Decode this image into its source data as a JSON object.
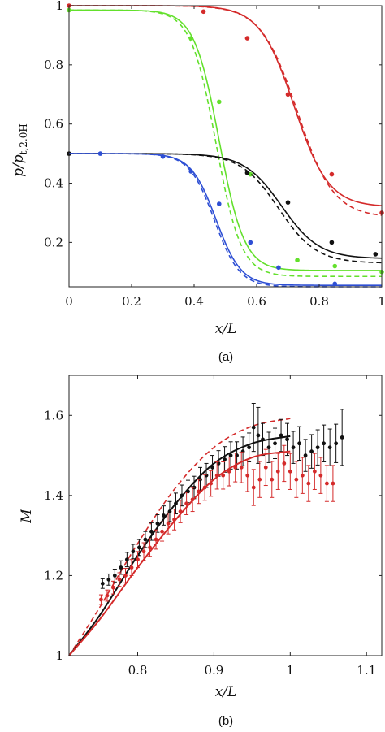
{
  "chart_data": [
    {
      "type": "line",
      "caption": "(a)",
      "xlabel": "x/L",
      "ylabel": "p/p",
      "ylabel_sub": "t,2.0H",
      "xlim": [
        0,
        1
      ],
      "ylim": [
        0.05,
        1.0
      ],
      "xticks": [
        "0",
        "0.2",
        "0.4",
        "0.6",
        "0.8",
        "1"
      ],
      "yticks": [
        "0.2",
        "0.4",
        "0.6",
        "0.8",
        "1"
      ],
      "series": [
        {
          "color": "#d42a2a",
          "curve": {
            "start": 1.0,
            "end": 0.32,
            "mid": 0.72,
            "width": 0.055
          },
          "dashed_curve": {
            "start": 1.0,
            "end": 0.285,
            "mid": 0.73,
            "width": 0.058
          },
          "points": [
            [
              0.0,
              1.0
            ],
            [
              0.43,
              0.98
            ],
            [
              0.57,
              0.89
            ],
            [
              0.7,
              0.7
            ],
            [
              0.84,
              0.43
            ],
            [
              1.0,
              0.3
            ]
          ]
        },
        {
          "color": "#63e02c",
          "curve": {
            "start": 0.985,
            "end": 0.105,
            "mid": 0.48,
            "width": 0.04
          },
          "dashed_curve": {
            "start": 0.985,
            "end": 0.085,
            "mid": 0.47,
            "width": 0.04
          },
          "points": [
            [
              0.0,
              0.985
            ],
            [
              0.39,
              0.89
            ],
            [
              0.48,
              0.675
            ],
            [
              0.58,
              0.43
            ],
            [
              0.73,
              0.14
            ],
            [
              0.85,
              0.12
            ],
            [
              1.0,
              0.1
            ]
          ]
        },
        {
          "color": "#111111",
          "curve": {
            "start": 0.5,
            "end": 0.145,
            "mid": 0.68,
            "width": 0.06
          },
          "dashed_curve": {
            "start": 0.5,
            "end": 0.13,
            "mid": 0.67,
            "width": 0.06
          },
          "points": [
            [
              0.0,
              0.5
            ],
            [
              0.57,
              0.435
            ],
            [
              0.7,
              0.335
            ],
            [
              0.84,
              0.2
            ],
            [
              0.98,
              0.16
            ]
          ]
        },
        {
          "color": "#2e4fd4",
          "curve": {
            "start": 0.5,
            "end": 0.055,
            "mid": 0.47,
            "width": 0.04
          },
          "dashed_curve": {
            "start": 0.5,
            "end": 0.05,
            "mid": 0.465,
            "width": 0.04
          },
          "points": [
            [
              0.1,
              0.5
            ],
            [
              0.3,
              0.49
            ],
            [
              0.39,
              0.44
            ],
            [
              0.48,
              0.33
            ],
            [
              0.58,
              0.2
            ],
            [
              0.67,
              0.115
            ],
            [
              0.85,
              0.06
            ]
          ]
        }
      ]
    },
    {
      "type": "scatter",
      "caption": "(b)",
      "xlabel": "x/L",
      "ylabel": "M",
      "xlim": [
        0.71,
        1.12
      ],
      "ylim": [
        1.0,
        1.7
      ],
      "xticks": [
        "0.8",
        "0.9",
        "1",
        "1.1"
      ],
      "yticks": [
        "1",
        "1.2",
        "1.4",
        "1.6"
      ],
      "series": [
        {
          "color": "#111111",
          "solid_curve": [
            [
              0.71,
              1.0
            ],
            [
              0.75,
              1.1
            ],
            [
              0.8,
              1.25
            ],
            [
              0.85,
              1.38
            ],
            [
              0.9,
              1.48
            ],
            [
              0.95,
              1.53
            ],
            [
              1.0,
              1.548
            ]
          ],
          "points": [
            [
              0.754,
              1.18,
              0.012
            ],
            [
              0.762,
              1.19,
              0.014
            ],
            [
              0.77,
              1.2,
              0.016
            ],
            [
              0.778,
              1.22,
              0.017
            ],
            [
              0.786,
              1.24,
              0.018
            ],
            [
              0.794,
              1.26,
              0.018
            ],
            [
              0.802,
              1.27,
              0.02
            ],
            [
              0.81,
              1.29,
              0.02
            ],
            [
              0.818,
              1.31,
              0.022
            ],
            [
              0.826,
              1.33,
              0.022
            ],
            [
              0.834,
              1.35,
              0.024
            ],
            [
              0.842,
              1.36,
              0.025
            ],
            [
              0.85,
              1.38,
              0.026
            ],
            [
              0.858,
              1.4,
              0.026
            ],
            [
              0.866,
              1.41,
              0.028
            ],
            [
              0.874,
              1.42,
              0.028
            ],
            [
              0.882,
              1.44,
              0.03
            ],
            [
              0.89,
              1.45,
              0.03
            ],
            [
              0.898,
              1.47,
              0.03
            ],
            [
              0.906,
              1.48,
              0.032
            ],
            [
              0.914,
              1.49,
              0.032
            ],
            [
              0.922,
              1.5,
              0.034
            ],
            [
              0.93,
              1.5,
              0.034
            ],
            [
              0.938,
              1.51,
              0.036
            ],
            [
              0.946,
              1.52,
              0.036
            ],
            [
              0.952,
              1.57,
              0.06
            ],
            [
              0.958,
              1.55,
              0.07
            ],
            [
              0.964,
              1.54,
              0.04
            ],
            [
              0.972,
              1.52,
              0.038
            ],
            [
              0.98,
              1.53,
              0.038
            ],
            [
              0.988,
              1.55,
              0.04
            ],
            [
              0.996,
              1.54,
              0.04
            ],
            [
              1.004,
              1.52,
              0.04
            ],
            [
              1.012,
              1.53,
              0.042
            ],
            [
              1.02,
              1.5,
              0.04
            ],
            [
              1.028,
              1.51,
              0.042
            ],
            [
              1.036,
              1.52,
              0.044
            ],
            [
              1.044,
              1.53,
              0.046
            ],
            [
              1.052,
              1.52,
              0.046
            ],
            [
              1.06,
              1.53,
              0.048
            ],
            [
              1.068,
              1.545,
              0.07
            ]
          ]
        },
        {
          "color": "#d42a2a",
          "solid_curve": [
            [
              0.71,
              1.0
            ],
            [
              0.75,
              1.09
            ],
            [
              0.8,
              1.22
            ],
            [
              0.85,
              1.34
            ],
            [
              0.9,
              1.44
            ],
            [
              0.95,
              1.495
            ],
            [
              1.0,
              1.51
            ]
          ],
          "dashed_curve": [
            [
              0.71,
              1.0
            ],
            [
              0.75,
              1.12
            ],
            [
              0.8,
              1.28
            ],
            [
              0.85,
              1.42
            ],
            [
              0.9,
              1.52
            ],
            [
              0.95,
              1.573
            ],
            [
              1.0,
              1.592
            ]
          ],
          "points": [
            [
              0.752,
              1.14,
              0.012
            ],
            [
              0.76,
              1.15,
              0.014
            ],
            [
              0.768,
              1.17,
              0.016
            ],
            [
              0.776,
              1.19,
              0.017
            ],
            [
              0.784,
              1.2,
              0.018
            ],
            [
              0.792,
              1.22,
              0.02
            ],
            [
              0.8,
              1.24,
              0.02
            ],
            [
              0.808,
              1.26,
              0.022
            ],
            [
              0.816,
              1.27,
              0.022
            ],
            [
              0.824,
              1.29,
              0.024
            ],
            [
              0.832,
              1.31,
              0.024
            ],
            [
              0.84,
              1.33,
              0.026
            ],
            [
              0.848,
              1.34,
              0.026
            ],
            [
              0.856,
              1.36,
              0.028
            ],
            [
              0.864,
              1.38,
              0.028
            ],
            [
              0.872,
              1.39,
              0.03
            ],
            [
              0.88,
              1.41,
              0.03
            ],
            [
              0.888,
              1.42,
              0.032
            ],
            [
              0.896,
              1.43,
              0.032
            ],
            [
              0.904,
              1.45,
              0.034
            ],
            [
              0.912,
              1.45,
              0.034
            ],
            [
              0.92,
              1.46,
              0.036
            ],
            [
              0.928,
              1.47,
              0.036
            ],
            [
              0.936,
              1.47,
              0.038
            ],
            [
              0.944,
              1.45,
              0.04
            ],
            [
              0.952,
              1.42,
              0.045
            ],
            [
              0.96,
              1.44,
              0.045
            ],
            [
              0.968,
              1.47,
              0.045
            ],
            [
              0.976,
              1.44,
              0.045
            ],
            [
              0.984,
              1.46,
              0.045
            ],
            [
              0.992,
              1.48,
              0.045
            ],
            [
              1.0,
              1.46,
              0.045
            ],
            [
              1.008,
              1.44,
              0.045
            ],
            [
              1.016,
              1.45,
              0.045
            ],
            [
              1.024,
              1.43,
              0.045
            ],
            [
              1.032,
              1.46,
              0.045
            ],
            [
              1.04,
              1.45,
              0.045
            ],
            [
              1.048,
              1.43,
              0.045
            ],
            [
              1.056,
              1.43,
              0.045
            ]
          ]
        }
      ]
    }
  ]
}
